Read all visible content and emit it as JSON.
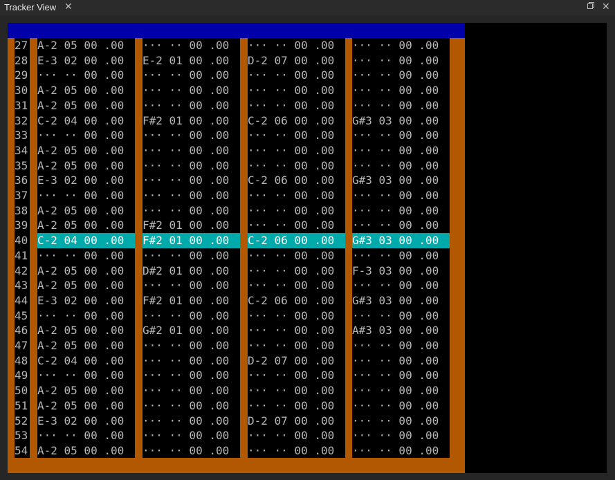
{
  "window": {
    "title": "Tracker View",
    "close_glyph": "✕",
    "restore_glyph": "🗗",
    "win_close_glyph": "✕"
  },
  "colors": {
    "header_bar": "#0000aa",
    "channel_separator": "#b25800",
    "cursor_row": "#00aaaa",
    "text": "#b8b8b8"
  },
  "tracker": {
    "current_row": "40",
    "rows": [
      {
        "num": "27",
        "cells": [
          "A-2 05 00 .00",
          "··· ·· 00 .00",
          "··· ·· 00 .00",
          "··· ·· 00 .00"
        ]
      },
      {
        "num": "28",
        "cells": [
          "E-3 02 00 .00",
          "E-2 01 00 .00",
          "D-2 07 00 .00",
          "··· ·· 00 .00"
        ]
      },
      {
        "num": "29",
        "cells": [
          "··· ·· 00 .00",
          "··· ·· 00 .00",
          "··· ·· 00 .00",
          "··· ·· 00 .00"
        ]
      },
      {
        "num": "30",
        "cells": [
          "A-2 05 00 .00",
          "··· ·· 00 .00",
          "··· ·· 00 .00",
          "··· ·· 00 .00"
        ]
      },
      {
        "num": "31",
        "cells": [
          "A-2 05 00 .00",
          "··· ·· 00 .00",
          "··· ·· 00 .00",
          "··· ·· 00 .00"
        ]
      },
      {
        "num": "32",
        "cells": [
          "C-2 04 00 .00",
          "F#2 01 00 .00",
          "C-2 06 00 .00",
          "G#3 03 00 .00"
        ]
      },
      {
        "num": "33",
        "cells": [
          "··· ·· 00 .00",
          "··· ·· 00 .00",
          "··· ·· 00 .00",
          "··· ·· 00 .00"
        ]
      },
      {
        "num": "34",
        "cells": [
          "A-2 05 00 .00",
          "··· ·· 00 .00",
          "··· ·· 00 .00",
          "··· ·· 00 .00"
        ]
      },
      {
        "num": "35",
        "cells": [
          "A-2 05 00 .00",
          "··· ·· 00 .00",
          "··· ·· 00 .00",
          "··· ·· 00 .00"
        ]
      },
      {
        "num": "36",
        "cells": [
          "E-3 02 00 .00",
          "··· ·· 00 .00",
          "C-2 06 00 .00",
          "G#3 03 00 .00"
        ]
      },
      {
        "num": "37",
        "cells": [
          "··· ·· 00 .00",
          "··· ·· 00 .00",
          "··· ·· 00 .00",
          "··· ·· 00 .00"
        ]
      },
      {
        "num": "38",
        "cells": [
          "A-2 05 00 .00",
          "··· ·· 00 .00",
          "··· ·· 00 .00",
          "··· ·· 00 .00"
        ]
      },
      {
        "num": "39",
        "cells": [
          "A-2 05 00 .00",
          "F#2 01 00 .00",
          "··· ·· 00 .00",
          "··· ·· 00 .00"
        ]
      },
      {
        "num": "40",
        "cells": [
          "C-2 04 00 .00",
          "F#2 01 00 .00",
          "C-2 06 00 .00",
          "G#3 03 00 .00"
        ]
      },
      {
        "num": "41",
        "cells": [
          "··· ·· 00 .00",
          "··· ·· 00 .00",
          "··· ·· 00 .00",
          "··· ·· 00 .00"
        ]
      },
      {
        "num": "42",
        "cells": [
          "A-2 05 00 .00",
          "D#2 01 00 .00",
          "··· ·· 00 .00",
          "F-3 03 00 .00"
        ]
      },
      {
        "num": "43",
        "cells": [
          "A-2 05 00 .00",
          "··· ·· 00 .00",
          "··· ·· 00 .00",
          "··· ·· 00 .00"
        ]
      },
      {
        "num": "44",
        "cells": [
          "E-3 02 00 .00",
          "F#2 01 00 .00",
          "C-2 06 00 .00",
          "G#3 03 00 .00"
        ]
      },
      {
        "num": "45",
        "cells": [
          "··· ·· 00 .00",
          "··· ·· 00 .00",
          "··· ·· 00 .00",
          "··· ·· 00 .00"
        ]
      },
      {
        "num": "46",
        "cells": [
          "A-2 05 00 .00",
          "G#2 01 00 .00",
          "··· ·· 00 .00",
          "A#3 03 00 .00"
        ]
      },
      {
        "num": "47",
        "cells": [
          "A-2 05 00 .00",
          "··· ·· 00 .00",
          "··· ·· 00 .00",
          "··· ·· 00 .00"
        ]
      },
      {
        "num": "48",
        "cells": [
          "C-2 04 00 .00",
          "··· ·· 00 .00",
          "D-2 07 00 .00",
          "··· ·· 00 .00"
        ]
      },
      {
        "num": "49",
        "cells": [
          "··· ·· 00 .00",
          "··· ·· 00 .00",
          "··· ·· 00 .00",
          "··· ·· 00 .00"
        ]
      },
      {
        "num": "50",
        "cells": [
          "A-2 05 00 .00",
          "··· ·· 00 .00",
          "··· ·· 00 .00",
          "··· ·· 00 .00"
        ]
      },
      {
        "num": "51",
        "cells": [
          "A-2 05 00 .00",
          "··· ·· 00 .00",
          "··· ·· 00 .00",
          "··· ·· 00 .00"
        ]
      },
      {
        "num": "52",
        "cells": [
          "E-3 02 00 .00",
          "··· ·· 00 .00",
          "D-2 07 00 .00",
          "··· ·· 00 .00"
        ]
      },
      {
        "num": "53",
        "cells": [
          "··· ·· 00 .00",
          "··· ·· 00 .00",
          "··· ·· 00 .00",
          "··· ·· 00 .00"
        ]
      },
      {
        "num": "54",
        "cells": [
          "A-2 05 00 .00",
          "··· ·· 00 .00",
          "··· ·· 00 .00",
          "··· ·· 00 .00"
        ]
      }
    ]
  }
}
